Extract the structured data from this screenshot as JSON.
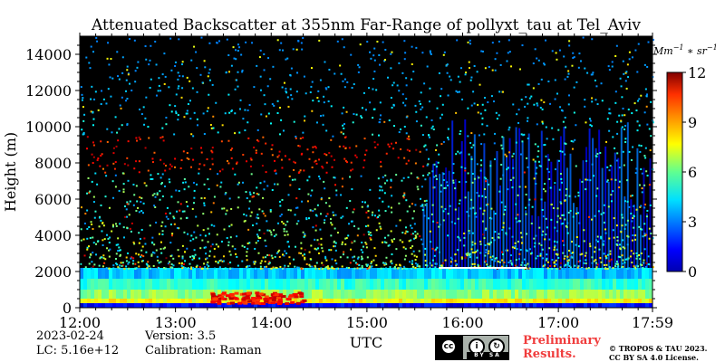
{
  "chart_data": {
    "type": "heatmap",
    "title": "Attenuated Backscatter at 355nm Far-Range of pollyxt_tau at Tel_Aviv",
    "xlabel": "UTC",
    "ylabel": "Height (m)",
    "x_ticks": [
      "12:00",
      "13:00",
      "14:00",
      "15:00",
      "16:00",
      "17:00",
      "17:59"
    ],
    "x_range": [
      "12:00",
      "17:59"
    ],
    "y_ticks": [
      0,
      2000,
      4000,
      6000,
      8000,
      10000,
      12000,
      14000
    ],
    "y_range": [
      0,
      15000
    ],
    "colorbar": {
      "unit": "Mm^{-1}*sr^{-1}",
      "ticks": [
        0,
        3,
        6,
        9,
        12
      ],
      "range": [
        0,
        12
      ],
      "colormap": "jet"
    },
    "features": {
      "surface_layer_height_m": [
        0,
        500
      ],
      "boundary_layer_top_m": 2200,
      "cloud_onset_time": "15:35",
      "cloud_base_range_m": [
        2200,
        11000
      ]
    }
  },
  "info": {
    "date": "2023-02-24",
    "lc": "LC: 5.16e+12",
    "version": "Version: 3.5",
    "calibration": "Calibration: Raman"
  },
  "badge": {
    "preliminary_line1": "Preliminary",
    "preliminary_line2": "Results.",
    "copyright_line1": "© TROPOS & TAU 2023.",
    "copyright_line2": "CC BY SA 4.0 License.",
    "cc_tags": "BY SA"
  }
}
